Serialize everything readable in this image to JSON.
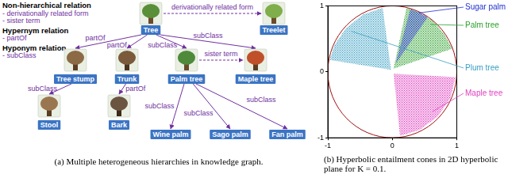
{
  "diagram": {
    "legend": [
      {
        "title": "Non-hierarchical relation",
        "items": [
          "- derivationally related form",
          "- sister term"
        ]
      },
      {
        "title": "Hypernym relation",
        "items": [
          "- partOf"
        ]
      },
      {
        "title": "Hyponym relation",
        "items": [
          "- subClass"
        ]
      }
    ],
    "nodes": [
      "Tree",
      "Treelet",
      "Tree stump",
      "Trunk",
      "Palm tree",
      "Maple tree",
      "Stool",
      "Bark",
      "Wine palm",
      "Sago palm",
      "Fan palm"
    ],
    "edges": [
      {
        "from": 0,
        "to": 1,
        "label": "derivationally related form",
        "line_style": "dashed"
      },
      {
        "from": 0,
        "to": 2,
        "label": "partOf",
        "line_style": "solid"
      },
      {
        "from": 0,
        "to": 3,
        "label": "partOf",
        "line_style": "solid"
      },
      {
        "from": 0,
        "to": 4,
        "label": "subClass",
        "line_style": "solid"
      },
      {
        "from": 0,
        "to": 5,
        "label": "subClass",
        "line_style": "solid"
      },
      {
        "from": 4,
        "to": 5,
        "label": "sister term",
        "line_style": "dashed"
      },
      {
        "from": 2,
        "to": 6,
        "label": "subClass",
        "line_style": "solid"
      },
      {
        "from": 3,
        "to": 7,
        "label": "partOf",
        "line_style": "solid"
      },
      {
        "from": 4,
        "to": 8,
        "label": "subClass",
        "line_style": "solid"
      },
      {
        "from": 4,
        "to": 9,
        "label": "subClass",
        "line_style": "solid"
      },
      {
        "from": 4,
        "to": 10,
        "label": "subClass",
        "line_style": "solid"
      }
    ],
    "caption": "(a) Multiple heterogeneous hierarchies in knowledge graph."
  },
  "chart_data": {
    "type": "scatter",
    "caption": "(b) Hyperbolic entailment cones in 2D hyperbolic plane for K = 0.1.",
    "xlim": [
      -1,
      1
    ],
    "ylim": [
      -1,
      1
    ],
    "xticks": [
      -1,
      0,
      1
    ],
    "yticks": [
      -1,
      0,
      1
    ],
    "grid": false,
    "disk_center": [
      0,
      0
    ],
    "disk_radius": 1,
    "series": [
      {
        "name": "Sugar palm",
        "color": "#1f2fd0",
        "polygon": [
          [
            0.05,
            0.12
          ],
          [
            0.55,
            0.83
          ],
          [
            0.42,
            0.9
          ],
          [
            0.28,
            0.95
          ]
        ]
      },
      {
        "name": "Palm tree",
        "color": "#2ca02c",
        "polygon": [
          [
            0.02,
            0.05
          ],
          [
            0.93,
            0.35
          ],
          [
            0.8,
            0.58
          ],
          [
            0.62,
            0.78
          ],
          [
            0.4,
            0.91
          ],
          [
            0.22,
            0.97
          ]
        ]
      },
      {
        "name": "Plum tree",
        "color": "#3a9fc4",
        "polygon": [
          [
            -0.02,
            0.03
          ],
          [
            -0.15,
            0.97
          ],
          [
            -0.45,
            0.87
          ],
          [
            -0.72,
            0.66
          ],
          [
            -0.9,
            0.4
          ],
          [
            -0.97,
            0.18
          ]
        ]
      },
      {
        "name": "Maple tree",
        "color": "#e040c0",
        "polygon": [
          [
            0.02,
            -0.03
          ],
          [
            0.98,
            -0.08
          ],
          [
            0.9,
            -0.4
          ],
          [
            0.7,
            -0.68
          ],
          [
            0.42,
            -0.88
          ],
          [
            0.12,
            -0.97
          ]
        ]
      }
    ]
  }
}
